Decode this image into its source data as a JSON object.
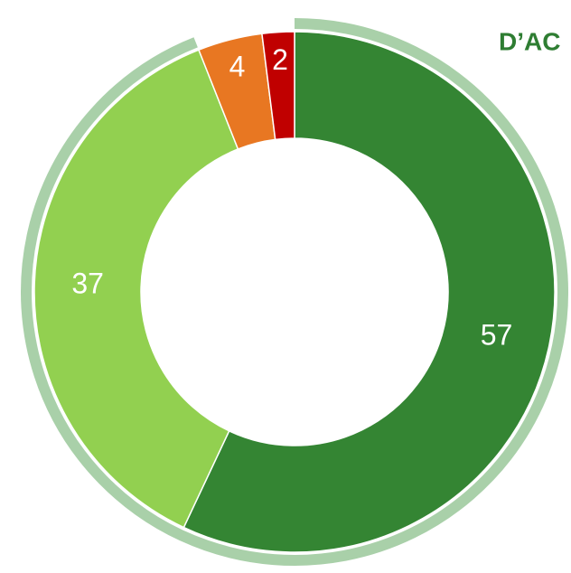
{
  "chart_data": {
    "type": "donut",
    "title": "D’AC",
    "categories": [
      null,
      null,
      null,
      null
    ],
    "values": [
      57,
      37,
      4,
      2
    ],
    "colors": [
      "#348533",
      "#92d050",
      "#e87722",
      "#c00000"
    ]
  }
}
